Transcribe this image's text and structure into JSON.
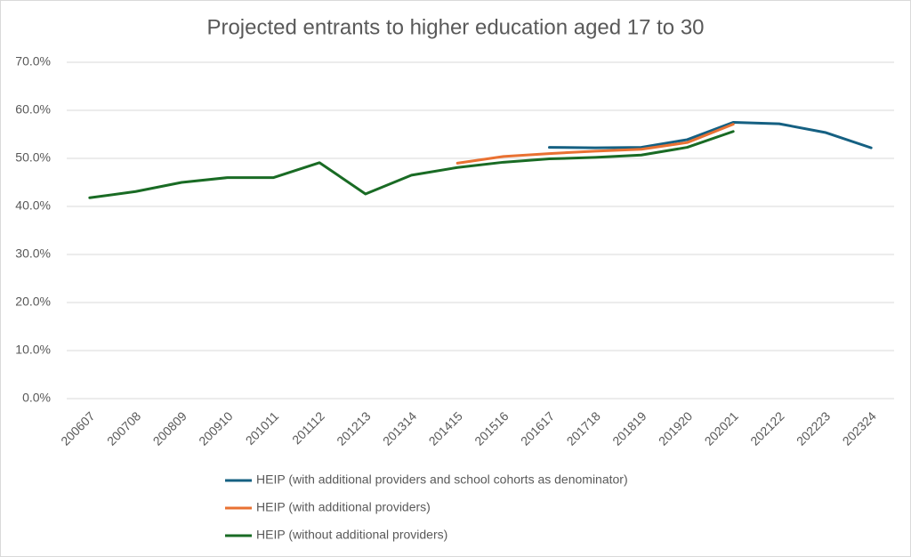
{
  "chart_data": {
    "type": "line",
    "title": "Projected entrants to higher education aged 17 to 30",
    "categories": [
      "200607",
      "200708",
      "200809",
      "200910",
      "201011",
      "201112",
      "201213",
      "201314",
      "201415",
      "201516",
      "201617",
      "201718",
      "201819",
      "201920",
      "202021",
      "202122",
      "202223",
      "202324"
    ],
    "series": [
      {
        "name": "HEIP (with additional providers and school cohorts as denominator)",
        "color": "#156082",
        "values": [
          null,
          null,
          null,
          null,
          null,
          null,
          null,
          null,
          null,
          null,
          52.3,
          52.2,
          52.3,
          53.9,
          57.5,
          57.2,
          55.4,
          52.2
        ]
      },
      {
        "name": "HEIP (with additional providers)",
        "color": "#e97132",
        "values": [
          null,
          null,
          null,
          null,
          null,
          null,
          null,
          null,
          49.0,
          50.4,
          51.0,
          51.5,
          51.9,
          53.3,
          57.1,
          null,
          null,
          null
        ]
      },
      {
        "name": "HEIP (without additional providers)",
        "color": "#196b24",
        "values": [
          41.8,
          43.1,
          45.0,
          46.0,
          46.0,
          49.1,
          42.6,
          46.5,
          48.1,
          49.2,
          49.9,
          50.2,
          50.7,
          52.3,
          55.6,
          null,
          null,
          null
        ]
      }
    ],
    "ylim": [
      0,
      70
    ],
    "yticks": [
      {
        "value": 0,
        "label": "0.0%"
      },
      {
        "value": 10,
        "label": "10.0%"
      },
      {
        "value": 20,
        "label": "20.0%"
      },
      {
        "value": 30,
        "label": "30.0%"
      },
      {
        "value": 40,
        "label": "40.0%"
      },
      {
        "value": 50,
        "label": "50.0%"
      },
      {
        "value": 60,
        "label": "60.0%"
      },
      {
        "value": 70,
        "label": "70.0%"
      }
    ],
    "grid": true,
    "legend": "bottom"
  }
}
